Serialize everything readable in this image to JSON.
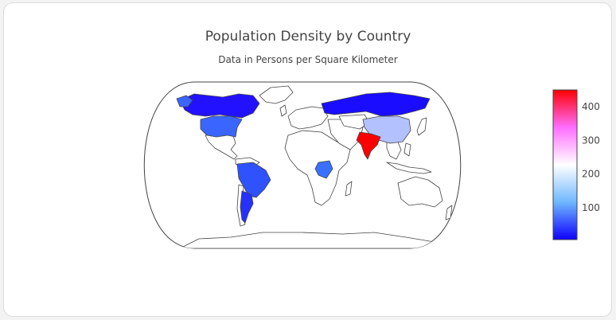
{
  "title": "Population Density by Country",
  "subtitle": "Data in Persons per Square Kilometer",
  "colorbar": {
    "ticks": [
      "100",
      "200",
      "300",
      "400"
    ],
    "tick_values": [
      100,
      200,
      300,
      400
    ],
    "range": [
      5,
      450
    ],
    "colors": [
      "#0d00ff",
      "#6fb7ff",
      "#ffffff",
      "#ff6dff",
      "#ff0000"
    ]
  },
  "chart_data": {
    "type": "choropleth",
    "projection": "natural earth",
    "metric": "Persons per Square Kilometer",
    "countries": [
      {
        "name": "India",
        "value": 450
      },
      {
        "name": "China",
        "value": 150
      },
      {
        "name": "United States",
        "value": 36
      },
      {
        "name": "Brazil",
        "value": 25
      },
      {
        "name": "Democratic Republic of the Congo",
        "value": 40
      },
      {
        "name": "Argentina",
        "value": 16
      },
      {
        "name": "Russia",
        "value": 9
      },
      {
        "name": "Canada",
        "value": 4
      }
    ]
  }
}
